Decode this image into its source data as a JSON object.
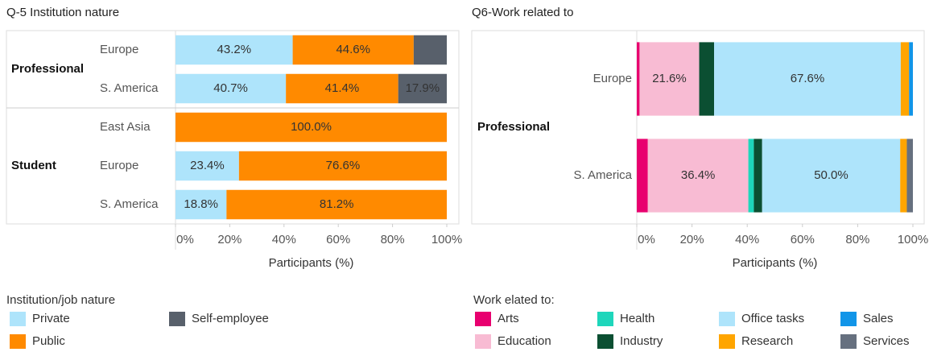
{
  "chart_data": [
    {
      "type": "bar",
      "orientation": "horizontal",
      "stacked": true,
      "title": "Q-5 Institution nature",
      "groups": [
        {
          "name": "Professional",
          "categories": [
            "Europe",
            "S. America"
          ]
        },
        {
          "name": "Student",
          "categories": [
            "East Asia",
            "Europe",
            "S. America"
          ]
        }
      ],
      "series": [
        {
          "name": "Private",
          "color": "#aee4fb",
          "values": [
            43.2,
            40.7,
            0,
            23.4,
            18.8
          ],
          "value_labels": [
            "43.2%",
            "40.7%",
            null,
            "23.4%",
            "18.8%"
          ]
        },
        {
          "name": "Public",
          "color": "#ff8a00",
          "values": [
            44.6,
            41.4,
            100.0,
            76.6,
            81.2
          ],
          "value_labels": [
            "44.6%",
            "41.4%",
            "100.0%",
            "76.6%",
            "81.2%"
          ]
        },
        {
          "name": "Self-employee",
          "color": "#58606b",
          "values": [
            12.2,
            17.9,
            0,
            0,
            0
          ],
          "value_labels": [
            null,
            "17.9%",
            null,
            null,
            null
          ]
        }
      ],
      "xlim": [
        0,
        100
      ],
      "xticks": [
        {
          "value": 0,
          "label": "0%"
        },
        {
          "value": 20,
          "label": "20%"
        },
        {
          "value": 40,
          "label": "40%"
        },
        {
          "value": 60,
          "label": "60%"
        },
        {
          "value": 80,
          "label": "80%"
        },
        {
          "value": 100,
          "label": "100%"
        }
      ],
      "xlabel": "Participants (%)",
      "legend_title": "Institution/job nature",
      "legend": "bottom",
      "legend_columns": 2
    },
    {
      "type": "bar",
      "orientation": "horizontal",
      "stacked": true,
      "title": "Q6-Work related to",
      "groups": [
        {
          "name": "Professional",
          "categories": [
            "Europe",
            "S. America"
          ]
        }
      ],
      "series": [
        {
          "name": "Arts",
          "color": "#e8006f",
          "values": [
            1.0,
            4.0
          ],
          "value_labels": [
            null,
            null
          ]
        },
        {
          "name": "Education",
          "color": "#f8bbd3",
          "values": [
            21.6,
            36.4
          ],
          "value_labels": [
            "21.6%",
            "36.4%"
          ]
        },
        {
          "name": "Health",
          "color": "#1ed6bb",
          "values": [
            0,
            2.0
          ],
          "value_labels": [
            null,
            null
          ]
        },
        {
          "name": "Industry",
          "color": "#0b4f32",
          "values": [
            5.4,
            3.0
          ],
          "value_labels": [
            null,
            null
          ]
        },
        {
          "name": "Office tasks",
          "color": "#aee4fb",
          "values": [
            67.6,
            50.0
          ],
          "value_labels": [
            "67.6%",
            "50.0%"
          ]
        },
        {
          "name": "Research",
          "color": "#ffa500",
          "values": [
            3.0,
            2.4
          ],
          "value_labels": [
            null,
            null
          ]
        },
        {
          "name": "Sales",
          "color": "#1195e8",
          "values": [
            1.4,
            0
          ],
          "value_labels": [
            null,
            null
          ]
        },
        {
          "name": "Services",
          "color": "#66707f",
          "values": [
            0,
            2.2
          ],
          "value_labels": [
            null,
            null
          ]
        }
      ],
      "xlim": [
        0,
        100
      ],
      "xticks": [
        {
          "value": 0,
          "label": "0%"
        },
        {
          "value": 20,
          "label": "20%"
        },
        {
          "value": 40,
          "label": "40%"
        },
        {
          "value": 60,
          "label": "60%"
        },
        {
          "value": 80,
          "label": "80%"
        },
        {
          "value": 100,
          "label": "100%"
        }
      ],
      "xlabel": "Participants (%)",
      "legend_title": "Work elated to:",
      "legend": "bottom",
      "legend_columns": 4
    }
  ]
}
